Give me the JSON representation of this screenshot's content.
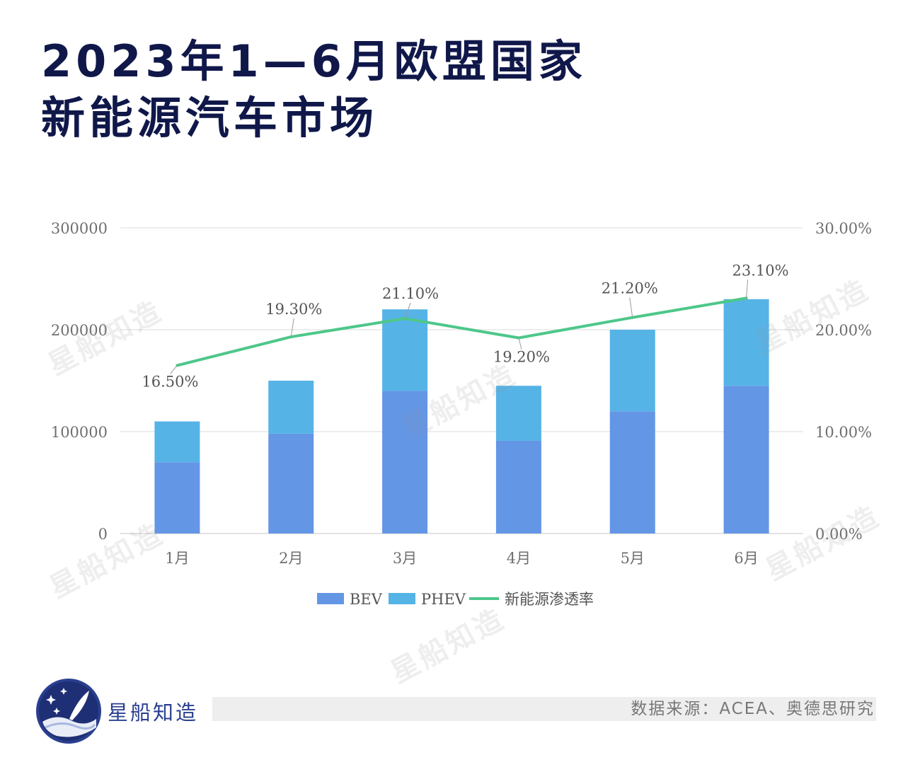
{
  "title": {
    "line1": "2023年1—6月欧盟国家",
    "line2": "新能源汽车市场"
  },
  "chart_data": {
    "type": "bar",
    "stacked": true,
    "categories": [
      "1月",
      "2月",
      "3月",
      "4月",
      "5月",
      "6月"
    ],
    "series": [
      {
        "name": "BEV",
        "kind": "bar",
        "color": "#6496e6",
        "values": [
          70000,
          98000,
          140000,
          91000,
          120000,
          145000
        ]
      },
      {
        "name": "PHEV",
        "kind": "bar",
        "color": "#56b3e6",
        "values": [
          40000,
          52000,
          80000,
          54000,
          80000,
          85000
        ]
      },
      {
        "name": "新能源渗透率",
        "kind": "line",
        "axis": "right",
        "color": "#4dc78a",
        "values": [
          16.5,
          19.3,
          21.1,
          19.2,
          21.2,
          23.1
        ]
      }
    ],
    "data_labels": [
      "16.50%",
      "19.30%",
      "21.10%",
      "19.20%",
      "21.20%",
      "23.10%"
    ],
    "y_left": {
      "ticks": [
        "0",
        "100000",
        "200000",
        "300000"
      ],
      "ylim": [
        0,
        300000
      ]
    },
    "y_right": {
      "ticks": [
        "0.00%",
        "10.00%",
        "20.00%",
        "30.00%"
      ],
      "ylim": [
        0,
        30
      ]
    },
    "grid": true,
    "legend_position": "bottom"
  },
  "footer": {
    "brand": "星船知造",
    "source": "数据来源：ACEA、奥德思研究"
  },
  "watermark_text": "星船知造"
}
